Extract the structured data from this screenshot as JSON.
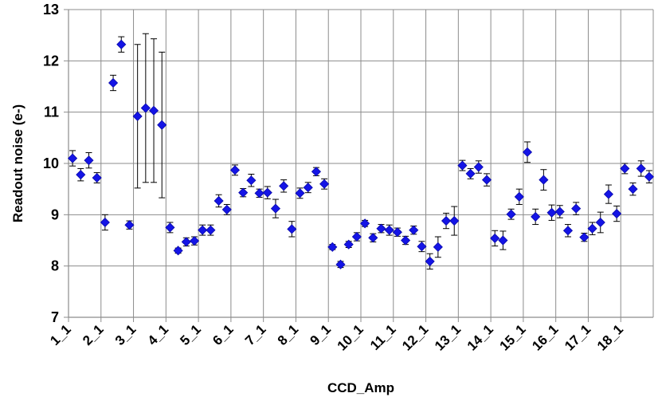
{
  "chart_data": {
    "type": "scatter",
    "title": "",
    "xlabel": "CCD_Amp",
    "ylabel": "Readout noise (e-)",
    "ylim": [
      7,
      13
    ],
    "y_ticks": [
      7,
      8,
      9,
      10,
      11,
      12,
      13
    ],
    "grid": true,
    "legend": "none",
    "marker": "diamond",
    "marker_color": "#1414e6",
    "error_bar_color": "#000000",
    "x_tick_labels": [
      "1_1",
      "2_1",
      "3_1",
      "4_1",
      "5_1",
      "6_1",
      "7_1",
      "8_1",
      "9_1",
      "10_1",
      "11_1",
      "12_1",
      "13_1",
      "14_1",
      "15_1",
      "16_1",
      "17_1",
      "18_1"
    ],
    "x_tick_step": 4,
    "x_max_index": 71,
    "series": [
      {
        "x": [
          0,
          1,
          2,
          3,
          4,
          5,
          6,
          7,
          8,
          9,
          10,
          11,
          12,
          13,
          14,
          15,
          16,
          17,
          18,
          19,
          20,
          21,
          22,
          23,
          24,
          25,
          26,
          27,
          28,
          29,
          30,
          31,
          32,
          33,
          34,
          35,
          36,
          37,
          38,
          39,
          40,
          41,
          42,
          43,
          44,
          45,
          46,
          47,
          48,
          49,
          50,
          51,
          52,
          53,
          54,
          55,
          56,
          57,
          58,
          59,
          60,
          61,
          62,
          63,
          64,
          65,
          66,
          67,
          68,
          69,
          70,
          71
        ],
        "y": [
          10.1,
          9.78,
          10.06,
          9.72,
          8.85,
          11.57,
          12.32,
          8.8,
          10.92,
          11.08,
          11.03,
          10.75,
          8.75,
          8.3,
          8.47,
          8.49,
          8.7,
          8.7,
          9.27,
          9.1,
          9.87,
          9.43,
          9.67,
          9.42,
          9.43,
          9.12,
          9.56,
          8.72,
          9.42,
          9.53,
          9.84,
          9.6,
          8.37,
          8.03,
          8.42,
          8.57,
          8.83,
          8.55,
          8.73,
          8.7,
          8.66,
          8.5,
          8.7,
          8.38,
          8.09,
          8.37,
          8.88,
          8.88,
          9.96,
          9.8,
          9.93,
          9.68,
          8.54,
          8.5,
          9.01,
          9.35,
          10.22,
          8.96,
          9.68,
          9.04,
          9.06,
          8.69,
          9.12,
          8.56,
          8.73,
          8.85,
          9.4,
          9.02,
          9.9,
          9.5,
          9.9,
          9.74
        ],
        "err": [
          0.15,
          0.12,
          0.15,
          0.1,
          0.15,
          0.15,
          0.15,
          0.08,
          1.4,
          1.45,
          1.4,
          1.42,
          0.1,
          0.05,
          0.08,
          0.08,
          0.1,
          0.1,
          0.12,
          0.1,
          0.1,
          0.08,
          0.12,
          0.08,
          0.12,
          0.18,
          0.12,
          0.15,
          0.1,
          0.1,
          0.08,
          0.1,
          0.05,
          0.06,
          0.06,
          0.08,
          0.06,
          0.08,
          0.08,
          0.1,
          0.08,
          0.08,
          0.08,
          0.1,
          0.15,
          0.2,
          0.15,
          0.28,
          0.1,
          0.1,
          0.12,
          0.12,
          0.15,
          0.18,
          0.1,
          0.15,
          0.2,
          0.15,
          0.2,
          0.15,
          0.12,
          0.12,
          0.12,
          0.08,
          0.12,
          0.2,
          0.18,
          0.15,
          0.1,
          0.12,
          0.15,
          0.12
        ]
      }
    ]
  }
}
